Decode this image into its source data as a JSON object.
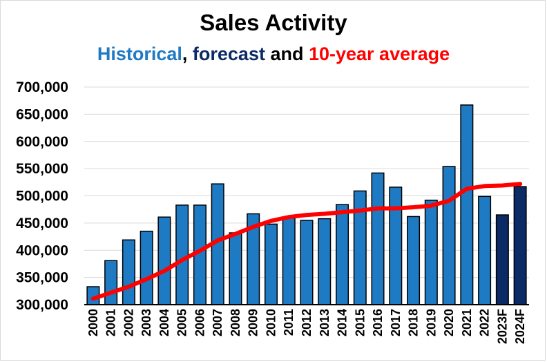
{
  "chart_data": {
    "type": "bar",
    "title": "Sales Activity",
    "subtitle_parts": [
      {
        "text": "Historical",
        "color": "#1f7ac4"
      },
      {
        "text": ", ",
        "color": "#000000"
      },
      {
        "text": "forecast",
        "color": "#0b2a66"
      },
      {
        "text": " and ",
        "color": "#000000"
      },
      {
        "text": "10-year average",
        "color": "#ff0000"
      }
    ],
    "categories": [
      "2000",
      "2001",
      "2002",
      "2003",
      "2004",
      "2005",
      "2006",
      "2007",
      "2008",
      "2009",
      "2010",
      "2011",
      "2012",
      "2013",
      "2014",
      "2015",
      "2016",
      "2017",
      "2018",
      "2019",
      "2020",
      "2021",
      "2022",
      "2023F",
      "2024F"
    ],
    "series": [
      {
        "type": "bar",
        "values": [
          333000,
          381000,
          419000,
          435000,
          461000,
          483000,
          483000,
          522000,
          432000,
          467000,
          448000,
          459000,
          455000,
          458000,
          484000,
          509000,
          542000,
          516000,
          462000,
          492000,
          554000,
          667000,
          499000,
          465000,
          517000
        ],
        "colors": [
          "#1f7ac4",
          "#1f7ac4",
          "#1f7ac4",
          "#1f7ac4",
          "#1f7ac4",
          "#1f7ac4",
          "#1f7ac4",
          "#1f7ac4",
          "#1f7ac4",
          "#1f7ac4",
          "#1f7ac4",
          "#1f7ac4",
          "#1f7ac4",
          "#1f7ac4",
          "#1f7ac4",
          "#1f7ac4",
          "#1f7ac4",
          "#1f7ac4",
          "#1f7ac4",
          "#1f7ac4",
          "#1f7ac4",
          "#1f7ac4",
          "#1f7ac4",
          "#0b2a66",
          "#0b2a66"
        ]
      },
      {
        "type": "line",
        "color": "#ff0000",
        "values": [
          311000,
          322000,
          333000,
          347000,
          362000,
          382000,
          399000,
          418000,
          430000,
          443000,
          454000,
          461000,
          465000,
          467000,
          470000,
          473000,
          477000,
          477000,
          479000,
          482000,
          491000,
          513000,
          518000,
          519000,
          522000
        ]
      }
    ],
    "ylim": [
      300000,
      700000
    ],
    "yticks": [
      "300,000",
      "350,000",
      "400,000",
      "450,000",
      "500,000",
      "550,000",
      "600,000",
      "650,000",
      "700,000"
    ],
    "grid": true
  }
}
